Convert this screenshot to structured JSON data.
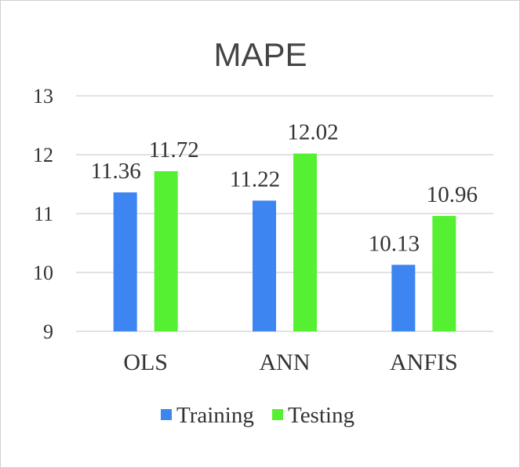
{
  "chart_data": {
    "type": "bar",
    "title": "MAPE",
    "xlabel": "",
    "ylabel": "",
    "categories": [
      "OLS",
      "ANN",
      "ANFIS"
    ],
    "series": [
      {
        "name": "Training",
        "values": [
          11.36,
          11.22,
          10.13
        ],
        "labels": [
          "11.36",
          "11.22",
          "10.13"
        ],
        "color": "#3d85f0"
      },
      {
        "name": "Testing",
        "values": [
          11.72,
          12.02,
          10.96
        ],
        "labels": [
          "11.72",
          "12.02",
          "10.96"
        ],
        "color": "#55f032"
      }
    ],
    "ylim": [
      9,
      13
    ],
    "yticks": [
      9,
      10,
      11,
      12,
      13
    ],
    "grid": true,
    "legend_position": "bottom"
  }
}
